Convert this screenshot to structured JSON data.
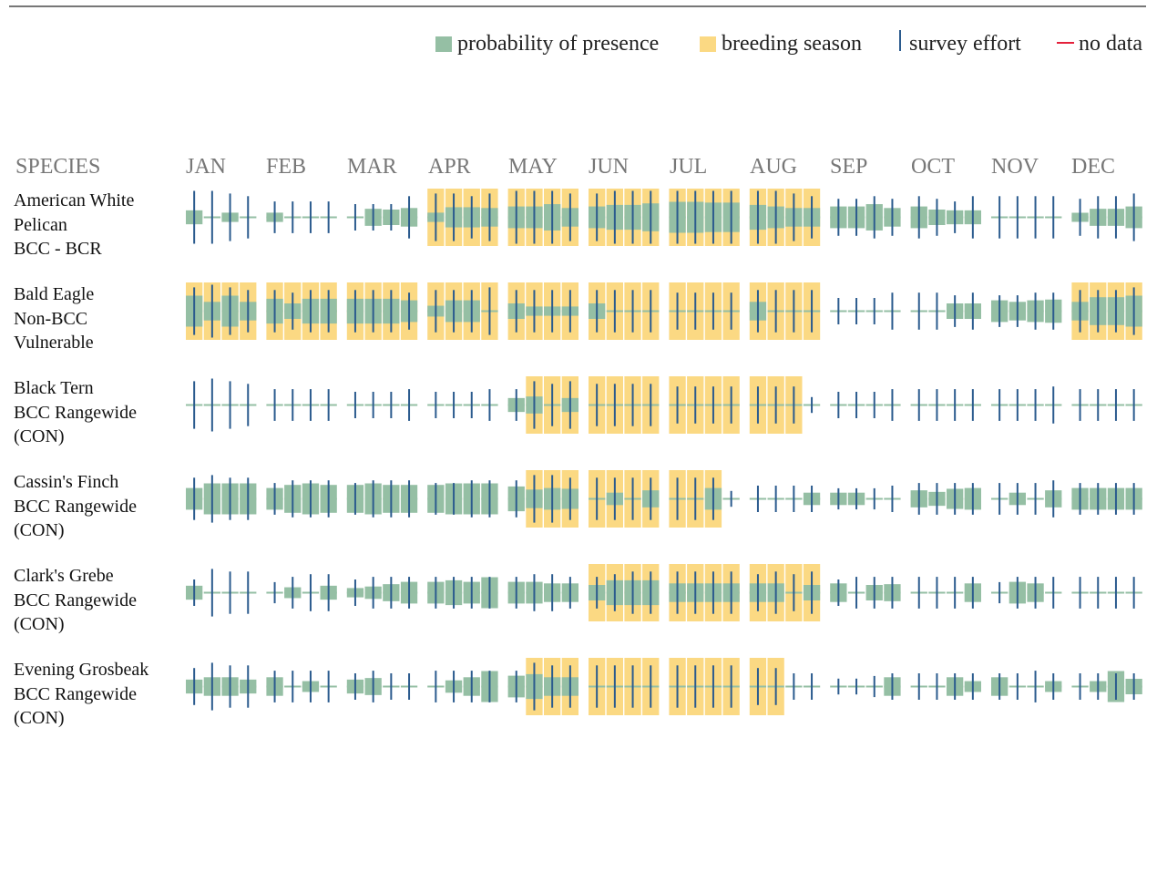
{
  "legend": {
    "presence": "probability of presence",
    "breeding": "breeding season",
    "effort": "survey effort",
    "nodata": "no data"
  },
  "header": {
    "species": "SPECIES",
    "months": [
      "JAN",
      "FEB",
      "MAR",
      "APR",
      "MAY",
      "JUN",
      "JUL",
      "AUG",
      "SEP",
      "OCT",
      "NOV",
      "DEC"
    ]
  },
  "colors": {
    "presence": "#95bfa4",
    "breeding": "#fbd983",
    "effort": "#2b5b8e",
    "nodata": "#e4213b",
    "baseline": "#95bfa4"
  },
  "chart_data": {
    "type": "heatmap",
    "weeks_per_month": 4,
    "species": [
      {
        "name": [
          "American White",
          "Pelican",
          "BCC - BCR"
        ],
        "presence": [
          0.45,
          0,
          0.3,
          0,
          0.3,
          0,
          0,
          0,
          0,
          0.55,
          0.5,
          0.6,
          0.3,
          0.65,
          0.65,
          0.6,
          0.7,
          0.7,
          0.85,
          0.6,
          0.7,
          0.8,
          0.8,
          0.9,
          1.0,
          1.0,
          0.95,
          0.95,
          0.8,
          0.7,
          0.6,
          0.6,
          0.7,
          0.7,
          0.85,
          0.6,
          0.7,
          0.5,
          0.45,
          0.45,
          0,
          0,
          0,
          0,
          0.25,
          0.55,
          0.55,
          0.7
        ],
        "breeding": [
          0,
          0,
          0,
          0,
          0,
          0,
          0,
          0,
          0,
          0,
          0,
          0,
          1,
          1,
          1,
          1,
          1,
          1,
          1,
          1,
          1,
          1,
          1,
          1,
          1,
          1,
          1,
          1,
          1,
          1,
          1,
          1,
          0,
          0,
          0,
          0,
          0,
          0,
          0,
          0,
          0,
          0,
          0,
          0,
          0,
          0,
          0,
          0
        ],
        "effort": [
          1,
          1,
          0.9,
          0.8,
          0.6,
          0.6,
          0.6,
          0.6,
          0.5,
          0.5,
          0.5,
          0.8,
          0.9,
          0.9,
          0.8,
          0.9,
          1,
          1,
          1,
          0.9,
          0.9,
          1,
          1,
          1,
          1,
          1,
          1,
          1,
          1,
          1,
          0.9,
          0.8,
          0.7,
          0.7,
          0.8,
          0.7,
          0.8,
          0.7,
          0.6,
          0.8,
          0.8,
          0.8,
          0.8,
          0.8,
          0.7,
          0.8,
          0.8,
          0.9
        ]
      },
      {
        "name": [
          "Bald Eagle",
          "Non-BCC",
          "Vulnerable"
        ],
        "presence": [
          1.0,
          0.6,
          1.0,
          0.6,
          0.8,
          0.5,
          0.8,
          0.8,
          0.8,
          0.8,
          0.8,
          0.7,
          0.35,
          0.7,
          0.7,
          0.0,
          0.5,
          0.3,
          0.3,
          0.3,
          0.5,
          0,
          0,
          0,
          0,
          0,
          0,
          0,
          0.6,
          0,
          0,
          0,
          0,
          0,
          0,
          0,
          0,
          0,
          0.5,
          0.5,
          0.7,
          0.6,
          0.7,
          0.75,
          0.6,
          0.9,
          0.9,
          1.0
        ],
        "breeding": [
          1,
          1,
          1,
          1,
          1,
          1,
          1,
          1,
          1,
          1,
          1,
          1,
          1,
          1,
          1,
          1,
          1,
          1,
          1,
          1,
          1,
          1,
          1,
          1,
          1,
          1,
          1,
          1,
          1,
          1,
          1,
          1,
          0,
          0,
          0,
          0,
          0,
          0,
          0,
          0,
          0,
          0,
          0,
          0,
          1,
          1,
          1,
          1
        ],
        "effort": [
          0.9,
          1,
          0.9,
          0.8,
          0.8,
          0.7,
          0.8,
          0.8,
          0.8,
          0.8,
          0.8,
          0.7,
          0.8,
          0.8,
          0.8,
          0.9,
          0.8,
          0.8,
          0.8,
          0.8,
          0.8,
          0.8,
          0.8,
          0.8,
          0.7,
          0.7,
          0.7,
          0.7,
          0.8,
          0.8,
          0.8,
          0.8,
          0.5,
          0.5,
          0.5,
          0.7,
          0.7,
          0.7,
          0.6,
          0.7,
          0.6,
          0.6,
          0.7,
          0.7,
          0.8,
          0.8,
          0.8,
          0.9
        ]
      },
      {
        "name": [
          "Black Tern",
          "BCC Rangewide",
          "(CON)"
        ],
        "presence": [
          0,
          0,
          0,
          0,
          0,
          0,
          0,
          0,
          0,
          0,
          0,
          0,
          0,
          0,
          0,
          0,
          0.45,
          0.55,
          0,
          0.45,
          0,
          0,
          0,
          0,
          0,
          0,
          0,
          0,
          0,
          0,
          0,
          0,
          0,
          0,
          0,
          0,
          0,
          0,
          0,
          0,
          0,
          0,
          0,
          0,
          0,
          0,
          0,
          0
        ],
        "breeding": [
          0,
          0,
          0,
          0,
          0,
          0,
          0,
          0,
          0,
          0,
          0,
          0,
          0,
          0,
          0,
          0,
          0,
          1,
          1,
          1,
          1,
          1,
          1,
          1,
          1,
          1,
          1,
          1,
          1,
          1,
          1,
          0,
          0,
          0,
          0,
          0,
          0,
          0,
          0,
          0,
          0,
          0,
          0,
          0,
          0,
          0,
          0,
          0
        ],
        "effort": [
          0.9,
          1,
          0.9,
          0.8,
          0.6,
          0.6,
          0.6,
          0.6,
          0.5,
          0.5,
          0.5,
          0.6,
          0.5,
          0.5,
          0.5,
          0.6,
          0.6,
          0.9,
          0.8,
          0.9,
          0.8,
          0.8,
          0.8,
          0.8,
          0.7,
          0.7,
          0.7,
          0.7,
          0.7,
          0.7,
          0.7,
          0.3,
          0.5,
          0.5,
          0.5,
          0.6,
          0.6,
          0.6,
          0.6,
          0.6,
          0.6,
          0.6,
          0.6,
          0.7,
          0.6,
          0.6,
          0.6,
          0.6
        ]
      },
      {
        "name": [
          "Cassin's Finch",
          "BCC Rangewide",
          "(CON)"
        ],
        "presence": [
          0.7,
          1.0,
          1.0,
          1.0,
          0.7,
          0.9,
          1.0,
          0.9,
          0.9,
          1.0,
          0.9,
          0.9,
          0.9,
          1.0,
          1.0,
          1.0,
          0.8,
          0.6,
          0.7,
          0.65,
          0,
          0.4,
          0,
          0.55,
          0,
          0,
          0.7,
          0,
          0,
          0,
          0,
          0.4,
          0.4,
          0.4,
          0,
          0,
          0.55,
          0.45,
          0.65,
          0.7,
          0,
          0.4,
          0,
          0.55,
          0.7,
          0.7,
          0.7,
          0.7
        ],
        "breeding": [
          0,
          0,
          0,
          0,
          0,
          0,
          0,
          0,
          0,
          0,
          0,
          0,
          0,
          0,
          0,
          0,
          0,
          1,
          1,
          1,
          1,
          1,
          1,
          1,
          1,
          1,
          1,
          0,
          0,
          0,
          0,
          0,
          0,
          0,
          0,
          0,
          0,
          0,
          0,
          0,
          0,
          0,
          0,
          0,
          0,
          0,
          0,
          0
        ],
        "effort": [
          0.8,
          0.9,
          0.8,
          0.8,
          0.6,
          0.7,
          0.7,
          0.7,
          0.6,
          0.7,
          0.7,
          0.7,
          0.6,
          0.6,
          0.7,
          0.7,
          0.7,
          0.9,
          0.9,
          0.8,
          0.8,
          0.8,
          0.8,
          0.8,
          0.8,
          0.8,
          0.8,
          0.3,
          0.5,
          0.5,
          0.5,
          0.5,
          0.4,
          0.4,
          0.4,
          0.5,
          0.6,
          0.6,
          0.6,
          0.6,
          0.6,
          0.6,
          0.6,
          0.7,
          0.6,
          0.6,
          0.6,
          0.6
        ]
      },
      {
        "name": [
          "Clark's Grebe",
          "BCC Rangewide",
          "(CON)"
        ],
        "presence": [
          0.45,
          0,
          0,
          0,
          0,
          0.35,
          0,
          0.45,
          0.3,
          0.4,
          0.55,
          0.7,
          0.7,
          0.8,
          0.7,
          1.0,
          0.7,
          0.7,
          0.6,
          0.6,
          0.5,
          0.8,
          0.8,
          0.8,
          0.6,
          0.6,
          0.6,
          0.6,
          0.6,
          0.6,
          0,
          0.5,
          0.6,
          0,
          0.5,
          0.55,
          0,
          0,
          0,
          0.6,
          0,
          0.7,
          0.6,
          0,
          0,
          0,
          0,
          0
        ],
        "breeding": [
          0,
          0,
          0,
          0,
          0,
          0,
          0,
          0,
          0,
          0,
          0,
          0,
          0,
          0,
          0,
          0,
          0,
          0,
          0,
          0,
          1,
          1,
          1,
          1,
          1,
          1,
          1,
          1,
          1,
          1,
          1,
          1,
          0,
          0,
          0,
          0,
          0,
          0,
          0,
          0,
          0,
          0,
          0,
          0,
          0,
          0,
          0,
          0
        ],
        "effort": [
          0.5,
          0.9,
          0.8,
          0.8,
          0.4,
          0.6,
          0.7,
          0.7,
          0.5,
          0.6,
          0.6,
          0.6,
          0.6,
          0.6,
          0.6,
          0.6,
          0.6,
          0.7,
          0.7,
          0.6,
          0.6,
          0.7,
          0.8,
          0.8,
          0.8,
          0.8,
          0.8,
          0.8,
          0.7,
          0.8,
          0.7,
          0.8,
          0.5,
          0.6,
          0.6,
          0.6,
          0.6,
          0.6,
          0.6,
          0.6,
          0.4,
          0.6,
          0.6,
          0.6,
          0.6,
          0.6,
          0.6,
          0.6
        ]
      },
      {
        "name": [
          "Evening Grosbeak",
          "BCC Rangewide",
          "(CON)"
        ],
        "presence": [
          0.45,
          0.6,
          0.6,
          0.45,
          0.6,
          0,
          0.35,
          0,
          0.45,
          0.55,
          0,
          0,
          0,
          0.4,
          0.6,
          1.0,
          0.7,
          0.8,
          0.6,
          0.6,
          0,
          0,
          0,
          0,
          0,
          0,
          0,
          0,
          0,
          0,
          0,
          0,
          0,
          0,
          0,
          0.6,
          0,
          0,
          0.6,
          0.35,
          0.6,
          0,
          0,
          0.35,
          0,
          0.35,
          1.0,
          0.5
        ],
        "breeding": [
          0,
          0,
          0,
          0,
          0,
          0,
          0,
          0,
          0,
          0,
          0,
          0,
          0,
          0,
          0,
          0,
          0,
          1,
          1,
          1,
          1,
          1,
          1,
          1,
          1,
          1,
          1,
          1,
          1,
          1,
          0,
          0,
          0,
          0,
          0,
          0,
          0,
          0,
          0,
          0,
          0,
          0,
          0,
          0,
          0,
          0,
          0,
          0
        ],
        "effort": [
          0.7,
          0.9,
          0.8,
          0.8,
          0.6,
          0.6,
          0.6,
          0.6,
          0.5,
          0.6,
          0.5,
          0.5,
          0.6,
          0.6,
          0.6,
          0.6,
          0.6,
          0.9,
          0.8,
          0.8,
          0.8,
          0.8,
          0.8,
          0.8,
          0.8,
          0.8,
          0.8,
          0.8,
          0.7,
          0.7,
          0.5,
          0.5,
          0.3,
          0.3,
          0.4,
          0.5,
          0.5,
          0.5,
          0.5,
          0.5,
          0.5,
          0.5,
          0.6,
          0.5,
          0.5,
          0.5,
          0.5,
          0.5
        ]
      }
    ]
  }
}
